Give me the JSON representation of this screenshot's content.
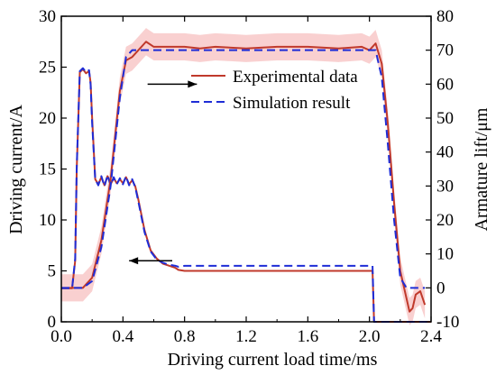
{
  "chart_data": {
    "type": "line",
    "xlabel": "Driving current load time/ms",
    "ylabel_left": "Driving current/A",
    "ylabel_right": "Armature lift/μm",
    "xlim": [
      0.0,
      2.4
    ],
    "ylim_left": [
      0,
      30
    ],
    "ylim_right": [
      -10,
      80
    ],
    "x_ticks": [
      "0.0",
      "0.4",
      "0.8",
      "1.2",
      "1.6",
      "2.0",
      "2.4"
    ],
    "y_left_ticks": [
      "0",
      "5",
      "10",
      "15",
      "20",
      "25",
      "30"
    ],
    "y_right_ticks": [
      "-10",
      "0",
      "10",
      "20",
      "30",
      "40",
      "50",
      "60",
      "70",
      "80"
    ],
    "legend_position": "top-right",
    "legend": [
      "Experimental data",
      "Simulation result"
    ],
    "colors": {
      "experimental": "#c0392b",
      "simulation": "#1f2dd6",
      "band": "#f4a9a9",
      "arrow": "#000000"
    },
    "series": [
      {
        "name": "Experimental data",
        "axis": "left",
        "kind": "current",
        "x": [
          0,
          0.07,
          0.09,
          0.1,
          0.12,
          0.14,
          0.16,
          0.18,
          0.19,
          0.2,
          0.22,
          0.24,
          0.26,
          0.28,
          0.3,
          0.32,
          0.34,
          0.36,
          0.38,
          0.4,
          0.42,
          0.44,
          0.46,
          0.48,
          0.5,
          0.54,
          0.58,
          0.62,
          0.66,
          0.7,
          0.74,
          0.76,
          0.8,
          0.9,
          1.0,
          1.1,
          1.2,
          1.3,
          1.4,
          1.5,
          1.6,
          1.7,
          1.8,
          1.9,
          2.0,
          2.02,
          2.03,
          2.1,
          2.4
        ],
        "y": [
          3.3,
          3.3,
          6.0,
          15.0,
          24.5,
          24.8,
          24.4,
          24.6,
          23.5,
          20.0,
          14.0,
          13.5,
          14.2,
          13.4,
          14.3,
          13.5,
          14.1,
          13.6,
          14.0,
          13.6,
          14.2,
          13.5,
          13.9,
          13.3,
          12.0,
          9.0,
          7.0,
          6.2,
          5.7,
          5.5,
          5.3,
          5.1,
          5.0,
          5.0,
          5.0,
          5.0,
          5.0,
          5.0,
          5.0,
          5.0,
          5.0,
          5.0,
          5.0,
          5.0,
          5.0,
          5.0,
          0.0,
          0.0,
          0.0
        ]
      },
      {
        "name": "Simulation result",
        "axis": "left",
        "kind": "current",
        "x": [
          0,
          0.07,
          0.09,
          0.1,
          0.12,
          0.14,
          0.16,
          0.18,
          0.19,
          0.2,
          0.22,
          0.24,
          0.26,
          0.28,
          0.3,
          0.32,
          0.34,
          0.36,
          0.38,
          0.4,
          0.42,
          0.44,
          0.46,
          0.48,
          0.5,
          0.54,
          0.58,
          0.62,
          0.66,
          0.7,
          0.74,
          0.76,
          0.8,
          0.9,
          1.0,
          1.1,
          1.2,
          1.3,
          1.4,
          1.5,
          1.6,
          1.7,
          1.8,
          1.9,
          2.0,
          2.02,
          2.03,
          2.1,
          2.4
        ],
        "y": [
          3.3,
          3.3,
          6.2,
          15.2,
          24.6,
          24.9,
          24.5,
          24.7,
          23.3,
          19.5,
          14.0,
          13.4,
          14.3,
          13.3,
          14.4,
          13.4,
          14.2,
          13.5,
          14.1,
          13.5,
          14.3,
          13.4,
          14.0,
          13.2,
          11.8,
          8.8,
          6.9,
          6.1,
          5.8,
          5.6,
          5.5,
          5.4,
          5.5,
          5.5,
          5.5,
          5.5,
          5.5,
          5.5,
          5.5,
          5.5,
          5.5,
          5.5,
          5.5,
          5.5,
          5.5,
          5.5,
          0.0,
          0.0,
          0.0
        ]
      },
      {
        "name": "Experimental data",
        "axis": "right",
        "kind": "lift",
        "x": [
          0.0,
          0.08,
          0.14,
          0.2,
          0.26,
          0.32,
          0.38,
          0.42,
          0.46,
          0.5,
          0.55,
          0.6,
          0.7,
          0.8,
          0.9,
          1.0,
          1.2,
          1.4,
          1.6,
          1.8,
          1.95,
          2.0,
          2.04,
          2.08,
          2.12,
          2.16,
          2.2,
          2.24,
          2.26,
          2.28,
          2.3,
          2.33,
          2.36
        ],
        "y": [
          0.0,
          0.0,
          0.0,
          3.0,
          14.0,
          32.0,
          58.0,
          67.0,
          68.0,
          70.0,
          72.5,
          71.0,
          71.0,
          71.0,
          70.5,
          71.0,
          70.5,
          71.0,
          71.0,
          70.5,
          71.0,
          70.0,
          72.0,
          66.0,
          48.0,
          25.0,
          5.0,
          -3.0,
          -7.0,
          -6.0,
          -2.0,
          -1.0,
          -5.0
        ]
      },
      {
        "name": "Simulation result",
        "axis": "right",
        "kind": "lift",
        "x": [
          0.0,
          0.08,
          0.14,
          0.2,
          0.26,
          0.32,
          0.38,
          0.42,
          0.46,
          0.5,
          0.55,
          0.6,
          0.7,
          0.8,
          0.9,
          1.0,
          1.2,
          1.4,
          1.6,
          1.8,
          1.95,
          2.0,
          2.04,
          2.08,
          2.12,
          2.16,
          2.2,
          2.24,
          2.26,
          2.28,
          2.3,
          2.33,
          2.36
        ],
        "y": [
          0.0,
          0.0,
          0.0,
          2.0,
          12.0,
          30.0,
          56.0,
          68.0,
          70.0,
          70.0,
          70.0,
          70.0,
          70.0,
          70.0,
          70.0,
          70.0,
          70.0,
          70.0,
          70.0,
          70.0,
          70.0,
          70.0,
          70.0,
          62.0,
          42.0,
          20.0,
          3.0,
          0.0,
          0.0,
          0.0,
          0.0,
          0.0,
          0.0
        ]
      }
    ],
    "annotations": [
      {
        "type": "arrow",
        "direction": "right",
        "target_axis": "right",
        "x_start": 0.56,
        "x_end": 0.88,
        "y": 60
      },
      {
        "type": "arrow",
        "direction": "left",
        "target_axis": "left",
        "x_start": 0.72,
        "x_end": 0.44,
        "y": 6.0
      }
    ]
  }
}
